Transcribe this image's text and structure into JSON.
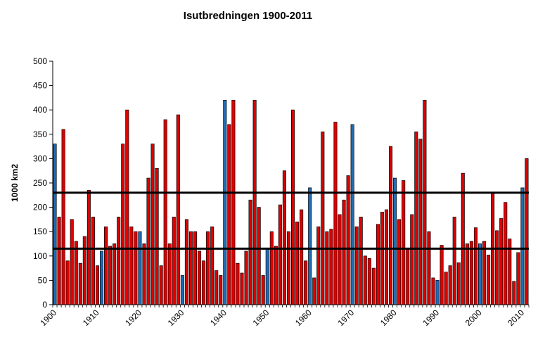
{
  "chart_data": {
    "type": "bar",
    "title": "Isutbredningen 1900-2011",
    "xlabel": "",
    "ylabel": "1000 km2",
    "ylim": [
      0,
      500
    ],
    "yticks": [
      0,
      50,
      100,
      150,
      200,
      250,
      300,
      350,
      400,
      450,
      500
    ],
    "xticks": [
      "1900",
      "1910",
      "1920",
      "1930",
      "1940",
      "1950",
      "1960",
      "1970",
      "1980",
      "1990",
      "2000",
      "2010"
    ],
    "x_start": 1900,
    "grid": false,
    "legend": "none",
    "colors": {
      "default": "#dd0000",
      "highlight": "#1f6db8",
      "outline": "#000000",
      "reference_line": "#000000"
    },
    "values": [
      330,
      180,
      360,
      90,
      175,
      130,
      85,
      140,
      235,
      180,
      80,
      110,
      160,
      120,
      125,
      180,
      330,
      400,
      160,
      150,
      150,
      125,
      260,
      330,
      280,
      80,
      380,
      125,
      180,
      390,
      60,
      175,
      150,
      150,
      110,
      90,
      150,
      160,
      70,
      60,
      420,
      370,
      420,
      85,
      65,
      110,
      215,
      420,
      200,
      60,
      115,
      150,
      120,
      205,
      275,
      150,
      400,
      170,
      195,
      90,
      240,
      55,
      160,
      355,
      150,
      155,
      375,
      185,
      215,
      265,
      370,
      160,
      180,
      100,
      95,
      75,
      165,
      190,
      195,
      325,
      260,
      175,
      255,
      115,
      185,
      355,
      340,
      420,
      150,
      55,
      50,
      122,
      67,
      80,
      180,
      86,
      270,
      125,
      130,
      158,
      125,
      130,
      102,
      230,
      152,
      177,
      210,
      135,
      48,
      107,
      240,
      300
    ],
    "highlighted_years": [
      1900,
      1911,
      1920,
      1930,
      1940,
      1950,
      1960,
      1970,
      1980,
      1990,
      2000,
      2010
    ],
    "reference_lines": [
      {
        "value": 230
      },
      {
        "value": 115
      }
    ]
  }
}
